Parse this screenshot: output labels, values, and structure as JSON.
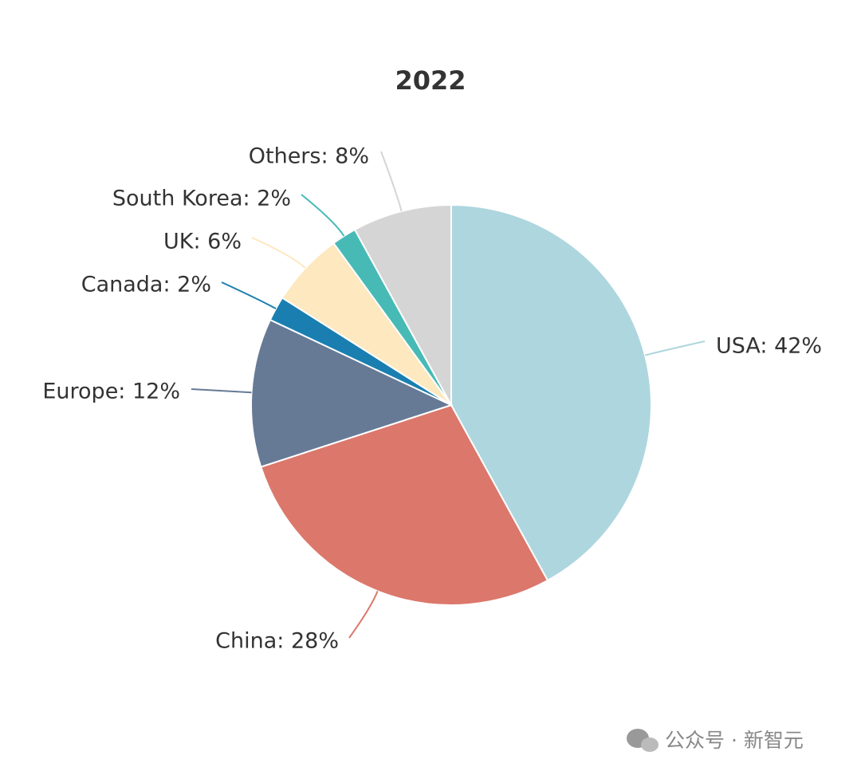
{
  "chart_data": {
    "type": "pie",
    "title": "2022",
    "values": [
      42,
      28,
      12,
      2,
      6,
      2,
      8
    ],
    "value_labels": [
      "USA: 42%",
      "China: 28%",
      "Europe: 12%",
      "Canada: 2%",
      "UK: 6%",
      "South Korea: 2%",
      "Others: 8%"
    ],
    "colors": [
      "#aed6de",
      "#dc776c",
      "#667a96",
      "#1a7fb0",
      "#fde8c0",
      "#48bab5",
      "#d5d5d5"
    ]
  },
  "watermark": "公众号 · 新智元"
}
